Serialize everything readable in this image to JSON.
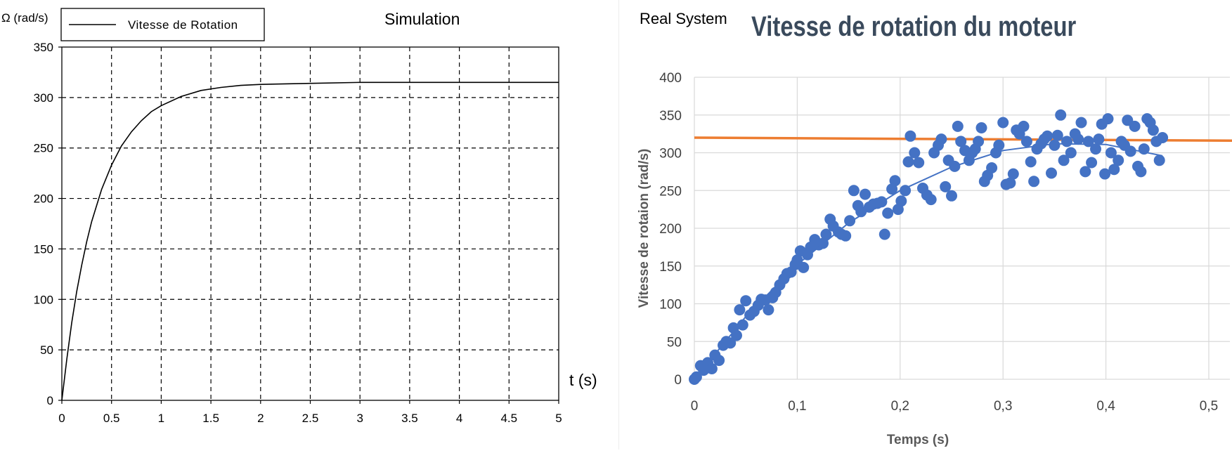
{
  "chart_data": [
    {
      "type": "line",
      "title": "Simulation",
      "xlabel": "t (s)",
      "ylabel": "Ω (rad/s)",
      "xlim": [
        0,
        5
      ],
      "ylim": [
        0,
        350
      ],
      "xticks": [
        "0",
        "0.5",
        "1",
        "1.5",
        "2",
        "2.5",
        "3",
        "3.5",
        "4",
        "4.5",
        "5"
      ],
      "yticks": [
        "0",
        "50",
        "100",
        "150",
        "200",
        "250",
        "300",
        "350"
      ],
      "grid": true,
      "grid_style": "dashed",
      "legend_position": "top-left",
      "series": [
        {
          "name": "Vitesse de Rotation",
          "color": "#000000",
          "x": [
            0,
            0.05,
            0.1,
            0.15,
            0.2,
            0.25,
            0.3,
            0.4,
            0.5,
            0.6,
            0.7,
            0.8,
            0.9,
            1.0,
            1.2,
            1.4,
            1.6,
            1.8,
            2.0,
            2.5,
            3.0,
            3.5,
            4.0,
            4.5,
            5.0
          ],
          "y": [
            0,
            41,
            77,
            108,
            134,
            157,
            177,
            209,
            233,
            252,
            266,
            277,
            286,
            292,
            301,
            307,
            310,
            312,
            313,
            314,
            315,
            315,
            315,
            315,
            315
          ]
        }
      ]
    },
    {
      "type": "scatter",
      "title": "Vitesse de rotation du moteur",
      "corner_label": "Real System",
      "xlabel": "Temps (s)",
      "ylabel": "Vitesse de rotaion (rad/s)",
      "xlim": [
        0,
        0.5
      ],
      "ylim": [
        0,
        400
      ],
      "xticks": [
        "0",
        "0,1",
        "0,2",
        "0,3",
        "0,4",
        "0,5"
      ],
      "yticks": [
        "0",
        "50",
        "100",
        "150",
        "200",
        "250",
        "300",
        "350",
        "400"
      ],
      "grid": true,
      "legend_position": "none",
      "series": [
        {
          "kind": "scatter",
          "color": "#4472c4",
          "points": [
            [
              0.0,
              0
            ],
            [
              0.002,
              3
            ],
            [
              0.006,
              18
            ],
            [
              0.009,
              12
            ],
            [
              0.013,
              22
            ],
            [
              0.017,
              14
            ],
            [
              0.02,
              32
            ],
            [
              0.024,
              25
            ],
            [
              0.028,
              45
            ],
            [
              0.031,
              50
            ],
            [
              0.035,
              48
            ],
            [
              0.038,
              68
            ],
            [
              0.041,
              58
            ],
            [
              0.044,
              92
            ],
            [
              0.047,
              72
            ],
            [
              0.05,
              104
            ],
            [
              0.054,
              85
            ],
            [
              0.058,
              90
            ],
            [
              0.062,
              98
            ],
            [
              0.065,
              106
            ],
            [
              0.069,
              105
            ],
            [
              0.072,
              92
            ],
            [
              0.076,
              108
            ],
            [
              0.079,
              115
            ],
            [
              0.083,
              125
            ],
            [
              0.087,
              133
            ],
            [
              0.09,
              140
            ],
            [
              0.094,
              142
            ],
            [
              0.098,
              152
            ],
            [
              0.1,
              158
            ],
            [
              0.103,
              170
            ],
            [
              0.106,
              148
            ],
            [
              0.11,
              165
            ],
            [
              0.113,
              175
            ],
            [
              0.117,
              185
            ],
            [
              0.121,
              178
            ],
            [
              0.125,
              180
            ],
            [
              0.128,
              192
            ],
            [
              0.132,
              212
            ],
            [
              0.135,
              203
            ],
            [
              0.14,
              195
            ],
            [
              0.143,
              192
            ],
            [
              0.147,
              190
            ],
            [
              0.151,
              210
            ],
            [
              0.155,
              250
            ],
            [
              0.159,
              230
            ],
            [
              0.162,
              222
            ],
            [
              0.166,
              245
            ],
            [
              0.17,
              228
            ],
            [
              0.174,
              232
            ],
            [
              0.178,
              233
            ],
            [
              0.182,
              235
            ],
            [
              0.185,
              192
            ],
            [
              0.188,
              220
            ],
            [
              0.192,
              252
            ],
            [
              0.195,
              263
            ],
            [
              0.198,
              225
            ],
            [
              0.201,
              236
            ],
            [
              0.205,
              250
            ],
            [
              0.208,
              288
            ],
            [
              0.21,
              322
            ],
            [
              0.214,
              300
            ],
            [
              0.218,
              287
            ],
            [
              0.222,
              253
            ],
            [
              0.226,
              244
            ],
            [
              0.23,
              238
            ],
            [
              0.233,
              300
            ],
            [
              0.237,
              310
            ],
            [
              0.24,
              318
            ],
            [
              0.244,
              255
            ],
            [
              0.247,
              290
            ],
            [
              0.25,
              243
            ],
            [
              0.253,
              282
            ],
            [
              0.256,
              335
            ],
            [
              0.259,
              315
            ],
            [
              0.263,
              303
            ],
            [
              0.267,
              290
            ],
            [
              0.27,
              300
            ],
            [
              0.273,
              305
            ],
            [
              0.276,
              315
            ],
            [
              0.279,
              333
            ],
            [
              0.282,
              262
            ],
            [
              0.285,
              270
            ],
            [
              0.289,
              280
            ],
            [
              0.293,
              300
            ],
            [
              0.296,
              310
            ],
            [
              0.3,
              340
            ],
            [
              0.303,
              258
            ],
            [
              0.307,
              260
            ],
            [
              0.31,
              272
            ],
            [
              0.313,
              330
            ],
            [
              0.316,
              325
            ],
            [
              0.32,
              335
            ],
            [
              0.323,
              315
            ],
            [
              0.327,
              288
            ],
            [
              0.33,
              262
            ],
            [
              0.333,
              305
            ],
            [
              0.337,
              312
            ],
            [
              0.34,
              318
            ],
            [
              0.343,
              322
            ],
            [
              0.347,
              273
            ],
            [
              0.35,
              310
            ],
            [
              0.353,
              323
            ],
            [
              0.356,
              350
            ],
            [
              0.359,
              290
            ],
            [
              0.362,
              315
            ],
            [
              0.366,
              300
            ],
            [
              0.37,
              325
            ],
            [
              0.373,
              318
            ],
            [
              0.376,
              340
            ],
            [
              0.38,
              275
            ],
            [
              0.383,
              315
            ],
            [
              0.386,
              287
            ],
            [
              0.39,
              305
            ],
            [
              0.393,
              318
            ],
            [
              0.396,
              338
            ],
            [
              0.399,
              272
            ],
            [
              0.402,
              345
            ],
            [
              0.405,
              300
            ],
            [
              0.408,
              278
            ],
            [
              0.412,
              290
            ],
            [
              0.415,
              315
            ],
            [
              0.418,
              310
            ],
            [
              0.421,
              343
            ],
            [
              0.424,
              302
            ],
            [
              0.428,
              335
            ],
            [
              0.431,
              282
            ],
            [
              0.434,
              275
            ],
            [
              0.437,
              305
            ],
            [
              0.44,
              345
            ],
            [
              0.443,
              340
            ],
            [
              0.446,
              330
            ],
            [
              0.449,
              315
            ],
            [
              0.452,
              290
            ],
            [
              0.455,
              320
            ]
          ]
        },
        {
          "kind": "trend",
          "color": "#4472c4",
          "x": [
            0,
            0.05,
            0.1,
            0.15,
            0.2,
            0.25,
            0.3,
            0.35,
            0.4,
            0.455
          ],
          "y": [
            0,
            83,
            152,
            207,
            250,
            281,
            303,
            312,
            311,
            296
          ]
        },
        {
          "kind": "line",
          "color": "#ed7d31",
          "x": [
            0,
            0.5
          ],
          "y": [
            320,
            316
          ]
        }
      ]
    }
  ]
}
